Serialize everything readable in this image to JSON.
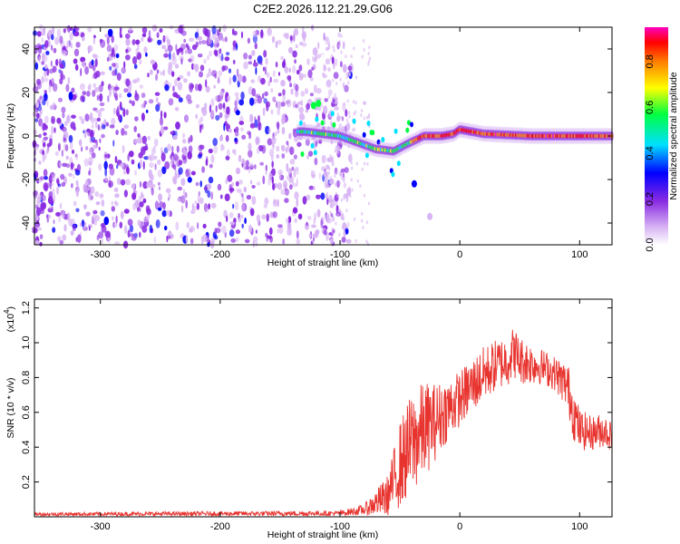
{
  "title": "C2E2.2026.112.21.29.G06",
  "chart_data": [
    {
      "type": "heatmap",
      "name": "spectrogram",
      "xlabel": "Height of straight line (km)",
      "ylabel": "Frequency (Hz)",
      "xlim": [
        -355,
        127
      ],
      "ylim": [
        -50,
        50
      ],
      "xticks": [
        -300,
        -200,
        -100,
        0,
        100
      ],
      "yticks": [
        -40,
        -20,
        0,
        20,
        40
      ],
      "colorbar": {
        "label": "Normalized spectral amplitude",
        "range": [
          0,
          0.95
        ],
        "ticks": [
          "0.0",
          "0.2",
          "0.4",
          "0.6",
          "0.8"
        ],
        "colors": [
          "#ffffff",
          "#d8b4f4",
          "#8a2be2",
          "#0000ff",
          "#00e0ff",
          "#00ff40",
          "#ffff00",
          "#ff8000",
          "#ff0000",
          "#ff00c0"
        ]
      },
      "signal_track": [
        {
          "x": -130,
          "f": 2
        },
        {
          "x": -100,
          "f": 0
        },
        {
          "x": -85,
          "f": -3
        },
        {
          "x": -70,
          "f": -6
        },
        {
          "x": -55,
          "f": -7
        },
        {
          "x": -45,
          "f": -4
        },
        {
          "x": -30,
          "f": 0
        },
        {
          "x": -15,
          "f": 0
        },
        {
          "x": -5,
          "f": 1
        },
        {
          "x": 0,
          "f": 3
        },
        {
          "x": 20,
          "f": 1
        },
        {
          "x": 60,
          "f": 0
        },
        {
          "x": 100,
          "f": 0
        },
        {
          "x": 127,
          "f": 0
        }
      ]
    },
    {
      "type": "line",
      "name": "snr",
      "xlabel": "Height of straight line (km)",
      "ylabel": "SNR (10 * v/v)",
      "multiplier": "(x10",
      "multiplier_exp": "4",
      "multiplier_close": ")",
      "color": "#e8342f",
      "xlim": [
        -355,
        127
      ],
      "ylim": [
        0,
        1.25
      ],
      "xticks": [
        -300,
        -200,
        -100,
        0,
        100
      ],
      "yticks": [
        0.2,
        0.4,
        0.6,
        0.8,
        1.0,
        1.2
      ],
      "ytick_labels": [
        "0.2",
        "0.4",
        "0.6",
        "0.8",
        "1.0",
        "1.2"
      ],
      "envelope": {
        "x": [
          -355,
          -100,
          -80,
          -60,
          -50,
          -40,
          -30,
          -20,
          -10,
          0,
          10,
          20,
          30,
          40,
          45,
          50,
          60,
          70,
          80,
          90,
          95,
          100,
          110,
          120,
          127
        ],
        "y": [
          0.015,
          0.02,
          0.04,
          0.12,
          0.3,
          0.42,
          0.5,
          0.55,
          0.62,
          0.68,
          0.75,
          0.82,
          0.87,
          0.9,
          0.95,
          0.9,
          0.88,
          0.86,
          0.82,
          0.75,
          0.6,
          0.5,
          0.48,
          0.5,
          0.46
        ],
        "noise": [
          0.01,
          0.015,
          0.03,
          0.12,
          0.25,
          0.3,
          0.28,
          0.22,
          0.18,
          0.16,
          0.16,
          0.16,
          0.15,
          0.15,
          0.15,
          0.14,
          0.12,
          0.1,
          0.1,
          0.14,
          0.16,
          0.12,
          0.1,
          0.1,
          0.08
        ]
      }
    }
  ]
}
